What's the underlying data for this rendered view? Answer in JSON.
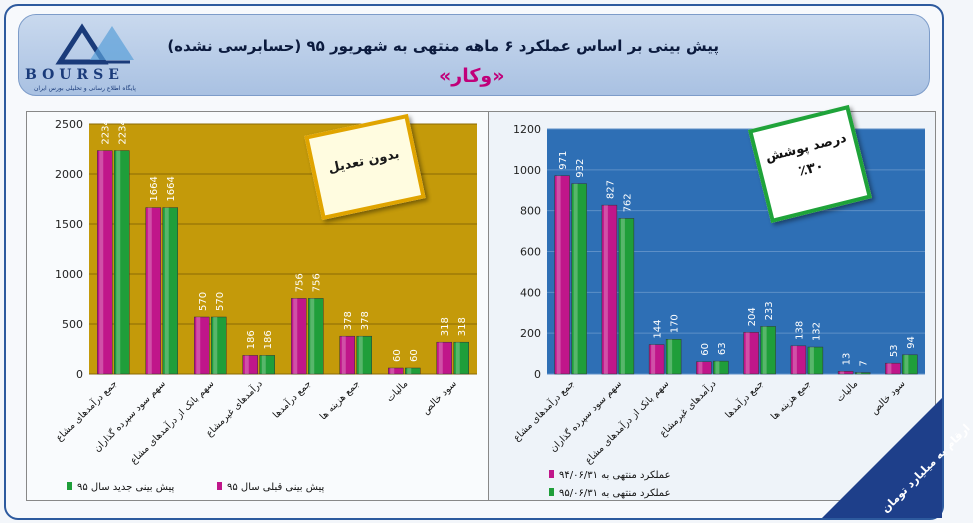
{
  "header": {
    "title": "پیش بینی بر اساس عملکرد ۶ ماهه منتهی به شهریور ۹۵ (حسابرسی نشده)",
    "subtitle": "«وکار»"
  },
  "logo": {
    "text": "BOURSE",
    "tagline": "پایگاه اطلاع رسانی و تحلیلی بورس ایران"
  },
  "badges": {
    "left": "بدون تعدیل",
    "right_line1": "درصد پوشش",
    "right_line2": "٪۳۰"
  },
  "units_label": "ارقام به میلیارد تومان",
  "colors": {
    "magenta": "#c0168a",
    "green": "#1f9e3a",
    "left_bg": "#c49a0a",
    "right_bg": "#2e6fb5",
    "badge_green": "#1fa33a",
    "badge_gold": "#e0a400"
  },
  "chart_data": [
    {
      "type": "bar",
      "categories": [
        "جمع درآمدهای مشاع",
        "سهم سود سپرده گذاران",
        "سهم بانک از درآمدهای مشاع",
        "درآمدهای غیرمشاع",
        "جمع درآمدها",
        "جمع هزینه ها",
        "مالیات",
        "سود خالص"
      ],
      "series": [
        {
          "name": "پیش بینی قبلی سال ۹۵",
          "values": [
            2234,
            1664,
            570,
            186,
            756,
            378,
            60,
            318
          ]
        },
        {
          "name": "پیش بینی جدید سال ۹۵",
          "values": [
            2234,
            1664,
            570,
            186,
            756,
            378,
            60,
            318
          ]
        }
      ],
      "ylim": [
        0,
        2500
      ],
      "yticks": [
        0,
        500,
        1000,
        1500,
        2000,
        2500
      ],
      "legend": "bottom"
    },
    {
      "type": "bar",
      "categories": [
        "جمع درآمدهای مشاع",
        "سهم سود سپرده گذاران",
        "سهم بانک از درآمدهای مشاع",
        "درآمدهای غیرمشاع",
        "جمع درآمدها",
        "جمع هزینه ها",
        "مالیات",
        "سود خالص"
      ],
      "series": [
        {
          "name": "عملکرد منتهی به ۹۴/۰۶/۳۱",
          "values": [
            971,
            827,
            144,
            60,
            204,
            138,
            13,
            53
          ]
        },
        {
          "name": "عملکرد منتهی به ۹۵/۰۶/۳۱",
          "values": [
            932,
            762,
            170,
            63,
            233,
            132,
            7,
            94
          ]
        }
      ],
      "ylim": [
        0,
        1200
      ],
      "yticks": [
        0,
        200,
        400,
        600,
        800,
        1000,
        1200
      ],
      "legend": "bottom"
    }
  ]
}
